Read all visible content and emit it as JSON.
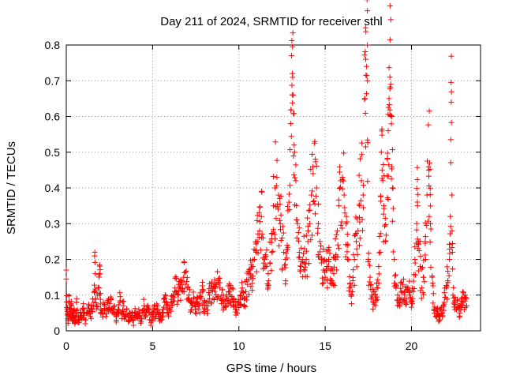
{
  "chart_data": {
    "type": "scatter",
    "title": "Day 211 of 2024, SRMTID for receiver sthl",
    "xlabel": "GPS time / hours",
    "ylabel": "SRMTID / TECUs",
    "xlim": [
      0,
      24
    ],
    "ylim": [
      0,
      0.8
    ],
    "xticks": [
      0,
      5,
      10,
      15,
      20
    ],
    "yticks": [
      0,
      0.1,
      0.2,
      0.3,
      0.4,
      0.5,
      0.6,
      0.7,
      0.8
    ],
    "ytick_labels": [
      "0",
      "0.1",
      "0.2",
      "0.3",
      "0.4",
      "0.5",
      "0.6",
      "0.7",
      "0.8"
    ],
    "xtick_labels": [
      "0",
      "5",
      "10",
      "15",
      "20"
    ],
    "grid": true,
    "marker": "+",
    "color": "#ff0000",
    "series": [
      {
        "name": "SRMTID",
        "points": [
          [
            0.0,
            0.145
          ],
          [
            0.05,
            0.06
          ],
          [
            0.1,
            0.03
          ],
          [
            0.15,
            0.08
          ],
          [
            0.2,
            0.05
          ],
          [
            0.25,
            0.04
          ],
          [
            0.3,
            0.07
          ],
          [
            0.35,
            0.03
          ],
          [
            0.4,
            0.05
          ],
          [
            0.45,
            0.06
          ],
          [
            0.5,
            0.02
          ],
          [
            0.55,
            0.04
          ],
          [
            0.6,
            0.08
          ],
          [
            0.7,
            0.03
          ],
          [
            0.8,
            0.05
          ],
          [
            0.9,
            0.04
          ],
          [
            1.0,
            0.06
          ],
          [
            1.1,
            0.02
          ],
          [
            1.2,
            0.05
          ],
          [
            1.3,
            0.07
          ],
          [
            1.4,
            0.04
          ],
          [
            1.5,
            0.06
          ],
          [
            1.6,
            0.08
          ],
          [
            1.65,
            0.22
          ],
          [
            1.7,
            0.09
          ],
          [
            1.8,
            0.1
          ],
          [
            1.9,
            0.12
          ],
          [
            1.95,
            0.16
          ],
          [
            2.0,
            0.06
          ],
          [
            2.1,
            0.05
          ],
          [
            2.2,
            0.07
          ],
          [
            2.3,
            0.04
          ],
          [
            2.4,
            0.08
          ],
          [
            2.5,
            0.06
          ],
          [
            2.6,
            0.09
          ],
          [
            2.7,
            0.05
          ],
          [
            2.8,
            0.07
          ],
          [
            2.9,
            0.03
          ],
          [
            3.0,
            0.06
          ],
          [
            3.1,
            0.08
          ],
          [
            3.2,
            0.05
          ],
          [
            3.3,
            0.07
          ],
          [
            3.4,
            0.04
          ],
          [
            3.5,
            0.06
          ],
          [
            3.6,
            0.03
          ],
          [
            3.7,
            0.05
          ],
          [
            3.8,
            0.04
          ],
          [
            3.9,
            0.03
          ],
          [
            4.0,
            0.05
          ],
          [
            4.1,
            0.04
          ],
          [
            4.2,
            0.06
          ],
          [
            4.3,
            0.03
          ],
          [
            4.4,
            0.05
          ],
          [
            4.5,
            0.07
          ],
          [
            4.6,
            0.04
          ],
          [
            4.7,
            0.06
          ],
          [
            4.8,
            0.05
          ],
          [
            4.9,
            0.03
          ],
          [
            5.0,
            0.04
          ],
          [
            5.1,
            0.06
          ],
          [
            5.2,
            0.05
          ],
          [
            5.3,
            0.07
          ],
          [
            5.4,
            0.04
          ],
          [
            5.5,
            0.03
          ],
          [
            5.6,
            0.06
          ],
          [
            5.7,
            0.08
          ],
          [
            5.8,
            0.07
          ],
          [
            5.9,
            0.05
          ],
          [
            6.0,
            0.06
          ],
          [
            6.1,
            0.08
          ],
          [
            6.2,
            0.1
          ],
          [
            6.3,
            0.12
          ],
          [
            6.4,
            0.11
          ],
          [
            6.5,
            0.13
          ],
          [
            6.6,
            0.12
          ],
          [
            6.7,
            0.14
          ],
          [
            6.8,
            0.15
          ],
          [
            6.9,
            0.13
          ],
          [
            7.0,
            0.12
          ],
          [
            7.1,
            0.1
          ],
          [
            7.2,
            0.08
          ],
          [
            7.3,
            0.07
          ],
          [
            7.4,
            0.09
          ],
          [
            7.5,
            0.06
          ],
          [
            7.6,
            0.08
          ],
          [
            7.7,
            0.07
          ],
          [
            7.8,
            0.09
          ],
          [
            7.9,
            0.11
          ],
          [
            8.0,
            0.06
          ],
          [
            8.1,
            0.08
          ],
          [
            8.2,
            0.07
          ],
          [
            8.3,
            0.1
          ],
          [
            8.4,
            0.12
          ],
          [
            8.5,
            0.09
          ],
          [
            8.6,
            0.11
          ],
          [
            8.7,
            0.13
          ],
          [
            8.8,
            0.14
          ],
          [
            8.9,
            0.12
          ],
          [
            9.0,
            0.1
          ],
          [
            9.1,
            0.08
          ],
          [
            9.2,
            0.07
          ],
          [
            9.3,
            0.09
          ],
          [
            9.4,
            0.11
          ],
          [
            9.5,
            0.1
          ],
          [
            9.6,
            0.12
          ],
          [
            9.7,
            0.09
          ],
          [
            9.8,
            0.07
          ],
          [
            9.9,
            0.05
          ],
          [
            10.0,
            0.08
          ],
          [
            10.1,
            0.1
          ],
          [
            10.2,
            0.12
          ],
          [
            10.3,
            0.09
          ],
          [
            10.4,
            0.11
          ],
          [
            10.5,
            0.13
          ],
          [
            10.6,
            0.16
          ],
          [
            10.7,
            0.15
          ],
          [
            10.8,
            0.18
          ],
          [
            10.9,
            0.2
          ],
          [
            11.0,
            0.22
          ],
          [
            11.1,
            0.25
          ],
          [
            11.2,
            0.28
          ],
          [
            11.3,
            0.32
          ],
          [
            11.4,
            0.26
          ],
          [
            11.5,
            0.2
          ],
          [
            11.6,
            0.18
          ],
          [
            11.7,
            0.16
          ],
          [
            11.8,
            0.19
          ],
          [
            11.9,
            0.22
          ],
          [
            12.0,
            0.35
          ],
          [
            12.1,
            0.4
          ],
          [
            12.2,
            0.43
          ],
          [
            12.3,
            0.38
          ],
          [
            12.4,
            0.3
          ],
          [
            12.5,
            0.26
          ],
          [
            12.6,
            0.22
          ],
          [
            12.7,
            0.2
          ],
          [
            12.8,
            0.24
          ],
          [
            12.9,
            0.36
          ],
          [
            13.0,
            0.58
          ],
          [
            13.05,
            0.77
          ],
          [
            13.1,
            0.72
          ],
          [
            13.15,
            0.66
          ],
          [
            13.2,
            0.52
          ],
          [
            13.3,
            0.42
          ],
          [
            13.4,
            0.3
          ],
          [
            13.5,
            0.22
          ],
          [
            13.6,
            0.18
          ],
          [
            13.7,
            0.2
          ],
          [
            13.8,
            0.23
          ],
          [
            13.9,
            0.2
          ],
          [
            14.0,
            0.25
          ],
          [
            14.1,
            0.3
          ],
          [
            14.2,
            0.38
          ],
          [
            14.3,
            0.44
          ],
          [
            14.4,
            0.53
          ],
          [
            14.5,
            0.4
          ],
          [
            14.6,
            0.3
          ],
          [
            14.7,
            0.25
          ],
          [
            14.8,
            0.2
          ],
          [
            14.9,
            0.17
          ],
          [
            15.0,
            0.15
          ],
          [
            15.1,
            0.18
          ],
          [
            15.2,
            0.2
          ],
          [
            15.3,
            0.17
          ],
          [
            15.4,
            0.14
          ],
          [
            15.5,
            0.16
          ],
          [
            15.6,
            0.2
          ],
          [
            15.7,
            0.28
          ],
          [
            15.8,
            0.35
          ],
          [
            15.9,
            0.42
          ],
          [
            16.0,
            0.43
          ],
          [
            16.1,
            0.38
          ],
          [
            16.2,
            0.3
          ],
          [
            16.3,
            0.2
          ],
          [
            16.4,
            0.12
          ],
          [
            16.5,
            0.1
          ],
          [
            16.6,
            0.14
          ],
          [
            16.7,
            0.2
          ],
          [
            16.8,
            0.25
          ],
          [
            16.9,
            0.28
          ],
          [
            17.0,
            0.35
          ],
          [
            17.1,
            0.42
          ],
          [
            17.2,
            0.38
          ],
          [
            17.3,
            0.65
          ],
          [
            17.35,
            0.76
          ],
          [
            17.4,
            0.74
          ],
          [
            17.45,
            0.7
          ],
          [
            17.5,
            0.2
          ],
          [
            17.6,
            0.15
          ],
          [
            17.7,
            0.1
          ],
          [
            17.8,
            0.08
          ],
          [
            17.9,
            0.1
          ],
          [
            18.0,
            0.12
          ],
          [
            18.1,
            0.18
          ],
          [
            18.2,
            0.22
          ],
          [
            18.25,
            0.5
          ],
          [
            18.3,
            0.45
          ],
          [
            18.4,
            0.35
          ],
          [
            18.5,
            0.25
          ],
          [
            18.6,
            0.48
          ],
          [
            18.65,
            0.56
          ],
          [
            18.7,
            0.65
          ],
          [
            18.75,
            0.71
          ],
          [
            18.8,
            0.69
          ],
          [
            18.85,
            0.6
          ],
          [
            18.9,
            0.4
          ],
          [
            19.0,
            0.2
          ],
          [
            19.1,
            0.12
          ],
          [
            19.2,
            0.1
          ],
          [
            19.3,
            0.08
          ],
          [
            19.4,
            0.11
          ],
          [
            19.5,
            0.13
          ],
          [
            19.6,
            0.1
          ],
          [
            19.7,
            0.09
          ],
          [
            19.8,
            0.12
          ],
          [
            19.9,
            0.1
          ],
          [
            20.0,
            0.08
          ],
          [
            20.1,
            0.11
          ],
          [
            20.2,
            0.2
          ],
          [
            20.3,
            0.3
          ],
          [
            20.35,
            0.35
          ],
          [
            20.4,
            0.25
          ],
          [
            20.5,
            0.18
          ],
          [
            20.6,
            0.12
          ],
          [
            20.7,
            0.15
          ],
          [
            20.8,
            0.25
          ],
          [
            20.9,
            0.38
          ],
          [
            21.0,
            0.45
          ],
          [
            21.05,
            0.47
          ],
          [
            21.1,
            0.3
          ],
          [
            21.2,
            0.15
          ],
          [
            21.3,
            0.06
          ],
          [
            21.4,
            0.04
          ],
          [
            21.5,
            0.05
          ],
          [
            21.6,
            0.03
          ],
          [
            21.7,
            0.06
          ],
          [
            21.8,
            0.04
          ],
          [
            21.9,
            0.08
          ],
          [
            22.0,
            0.12
          ],
          [
            22.1,
            0.14
          ],
          [
            22.2,
            0.2
          ],
          [
            22.25,
            0.32
          ],
          [
            22.3,
            0.64
          ],
          [
            22.35,
            0.28
          ],
          [
            22.4,
            0.1
          ],
          [
            22.5,
            0.08
          ],
          [
            22.6,
            0.06
          ],
          [
            22.7,
            0.07
          ],
          [
            22.8,
            0.05
          ],
          [
            22.9,
            0.09
          ],
          [
            23.0,
            0.08
          ],
          [
            23.1,
            0.1
          ],
          [
            23.2,
            0.07
          ]
        ]
      }
    ]
  }
}
